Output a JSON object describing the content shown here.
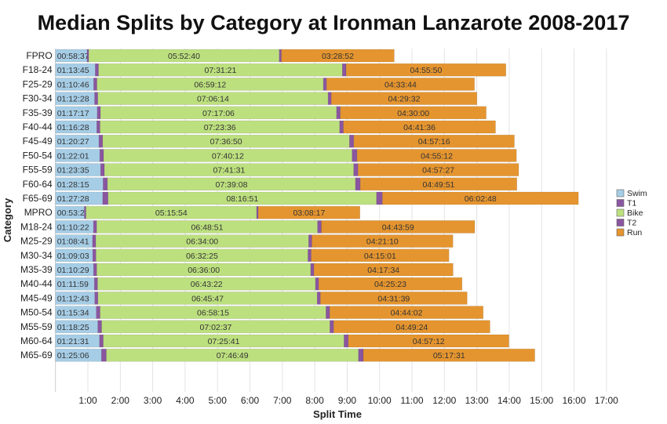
{
  "chart_data": {
    "type": "bar",
    "orientation": "horizontal",
    "stacked": true,
    "title": "Median Splits by Category at Ironman Lanzarote 2008-2017",
    "xlabel": "Split Time",
    "ylabel": "Category",
    "xlim_hours": [
      0,
      17.4
    ],
    "xticks": [
      "1:00",
      "2:00",
      "3:00",
      "4:00",
      "5:00",
      "6:00",
      "7:00",
      "8:00",
      "9:00",
      "10:00",
      "11:00",
      "12:00",
      "13:00",
      "14:00",
      "15:00",
      "16:00",
      "17:00"
    ],
    "grid": "vertical",
    "legend_position": "right",
    "legend": [
      "Swim",
      "T1",
      "Bike",
      "T2",
      "Run"
    ],
    "colors": {
      "Swim": "#a6cde6",
      "T1": "#8a56a0",
      "Bike": "#bde07f",
      "T2": "#8a56a0",
      "Run": "#e5952f"
    },
    "note": "T1 and T2 values are estimated minutes (unlabeled in chart)",
    "rows": [
      {
        "category": "FPRO",
        "swim": "00:58:37",
        "t1": 3,
        "bike": "05:52:40",
        "t2": 4,
        "run": "03:28:52"
      },
      {
        "category": "F18-24",
        "swim": "01:13:45",
        "t1": 6,
        "bike": "07:31:21",
        "t2": 7,
        "run": "04:55:50"
      },
      {
        "category": "F25-29",
        "swim": "01:10:46",
        "t1": 6,
        "bike": "06:59:12",
        "t2": 6,
        "run": "04:33:44"
      },
      {
        "category": "F30-34",
        "swim": "01:12:28",
        "t1": 6,
        "bike": "07:06:14",
        "t2": 6,
        "run": "04:29:32"
      },
      {
        "category": "F35-39",
        "swim": "01:17:17",
        "t1": 6,
        "bike": "07:17:06",
        "t2": 7,
        "run": "04:30:00"
      },
      {
        "category": "F40-44",
        "swim": "01:16:28",
        "t1": 6,
        "bike": "07:23:36",
        "t2": 7,
        "run": "04:41:36"
      },
      {
        "category": "F45-49",
        "swim": "01:20:27",
        "t1": 7,
        "bike": "07:36:50",
        "t2": 8,
        "run": "04:57:16"
      },
      {
        "category": "F50-54",
        "swim": "01:22:01",
        "t1": 7,
        "bike": "07:40:12",
        "t2": 9,
        "run": "04:55:12"
      },
      {
        "category": "F55-59",
        "swim": "01:23:35",
        "t1": 7,
        "bike": "07:41:31",
        "t2": 8,
        "run": "04:57:27"
      },
      {
        "category": "F60-64",
        "swim": "01:28:15",
        "t1": 8,
        "bike": "07:39:08",
        "t2": 9,
        "run": "04:49:51"
      },
      {
        "category": "F65-69",
        "swim": "01:27:28",
        "t1": 10,
        "bike": "08:16:51",
        "t2": 11,
        "run": "06:02:48"
      },
      {
        "category": "MPRO",
        "swim": "00:53:29",
        "t1": 3,
        "bike": "05:15:54",
        "t2": 3,
        "run": "03:08:17"
      },
      {
        "category": "M18-24",
        "swim": "01:10:22",
        "t1": 6,
        "bike": "06:48:51",
        "t2": 7,
        "run": "04:43:59"
      },
      {
        "category": "M25-29",
        "swim": "01:08:41",
        "t1": 6,
        "bike": "06:34:00",
        "t2": 6,
        "run": "04:21:10"
      },
      {
        "category": "M30-34",
        "swim": "01:09:03",
        "t1": 6,
        "bike": "06:32:25",
        "t2": 6,
        "run": "04:15:01"
      },
      {
        "category": "M35-39",
        "swim": "01:10:29",
        "t1": 6,
        "bike": "06:36:00",
        "t2": 6,
        "run": "04:17:34"
      },
      {
        "category": "M40-44",
        "swim": "01:11:59",
        "t1": 6,
        "bike": "06:43:22",
        "t2": 6,
        "run": "04:25:23"
      },
      {
        "category": "M45-49",
        "swim": "01:12:43",
        "t1": 6,
        "bike": "06:45:47",
        "t2": 6,
        "run": "04:31:39"
      },
      {
        "category": "M50-54",
        "swim": "01:15:34",
        "t1": 7,
        "bike": "06:58:15",
        "t2": 7,
        "run": "04:44:02"
      },
      {
        "category": "M55-59",
        "swim": "01:18:25",
        "t1": 7,
        "bike": "07:02:37",
        "t2": 7,
        "run": "04:49:24"
      },
      {
        "category": "M60-64",
        "swim": "01:21:31",
        "t1": 7,
        "bike": "07:25:41",
        "t2": 8,
        "run": "04:57:12"
      },
      {
        "category": "M65-69",
        "swim": "01:25:06",
        "t1": 9,
        "bike": "07:46:49",
        "t2": 9,
        "run": "05:17:31"
      }
    ]
  }
}
